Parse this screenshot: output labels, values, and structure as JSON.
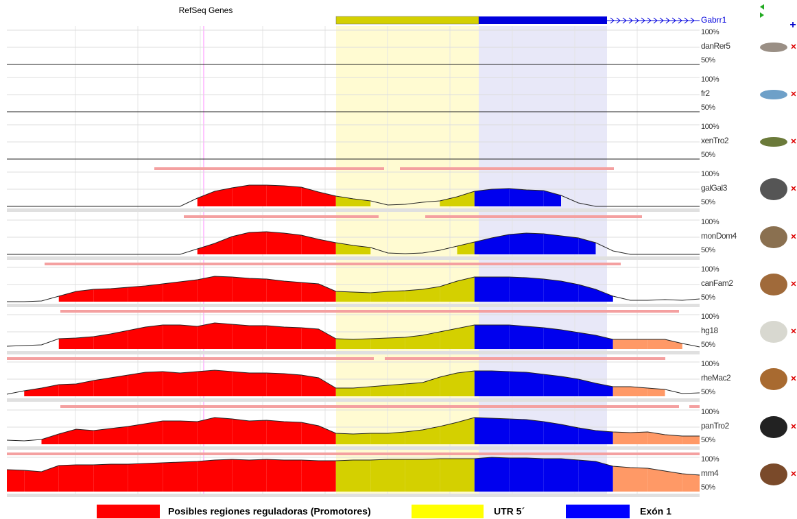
{
  "header": {
    "track_title": "RefSeq Genes",
    "gene": "Gabrr1"
  },
  "tracks": [
    {
      "name": "danRer5",
      "top_label": "100%",
      "bottom_label": "50%",
      "values": [
        50,
        50,
        50,
        50,
        50,
        50,
        50,
        50,
        50,
        50,
        50,
        50,
        50,
        50,
        50,
        50,
        50,
        50,
        50,
        50,
        50,
        50,
        50,
        50,
        50,
        50,
        50,
        50,
        50,
        50,
        50,
        50,
        50,
        50,
        50,
        50,
        50,
        50,
        50,
        50,
        50
      ]
    },
    {
      "name": "fr2",
      "top_label": "100%",
      "bottom_label": "50%",
      "values": [
        50,
        50,
        50,
        50,
        50,
        50,
        50,
        50,
        50,
        50,
        50,
        50,
        50,
        50,
        50,
        50,
        50,
        50,
        50,
        50,
        50,
        50,
        50,
        50,
        50,
        50,
        50,
        50,
        50,
        50,
        50,
        50,
        50,
        50,
        50,
        50,
        50,
        50,
        50,
        50,
        50
      ]
    },
    {
      "name": "xenTro2",
      "top_label": "100%",
      "bottom_label": "50%",
      "values": [
        50,
        50,
        50,
        50,
        50,
        50,
        50,
        50,
        50,
        50,
        50,
        50,
        50,
        50,
        50,
        50,
        50,
        50,
        50,
        50,
        50,
        50,
        50,
        50,
        50,
        50,
        50,
        50,
        50,
        50,
        50,
        50,
        50,
        50,
        50,
        50,
        50,
        50,
        50,
        50,
        50
      ]
    },
    {
      "name": "galGal3",
      "top_label": "100%",
      "bottom_label": "50%",
      "values": [
        50,
        50,
        50,
        50,
        50,
        50,
        50,
        50,
        50,
        50,
        50,
        62,
        72,
        77,
        81,
        81,
        80,
        78,
        71,
        65,
        61,
        58,
        52,
        53,
        56,
        58,
        64,
        72,
        75,
        76,
        74,
        73,
        66,
        55,
        50,
        50,
        50,
        50,
        50,
        50,
        50
      ]
    },
    {
      "name": "monDom4",
      "top_label": "100%",
      "bottom_label": "50%",
      "values": [
        50,
        50,
        50,
        50,
        50,
        50,
        50,
        50,
        50,
        50,
        50,
        58,
        66,
        76,
        82,
        83,
        81,
        78,
        72,
        67,
        63,
        60,
        52,
        51,
        52,
        56,
        62,
        68,
        74,
        79,
        81,
        80,
        77,
        74,
        67,
        55,
        50,
        50,
        50,
        50,
        50
      ]
    },
    {
      "name": "canFam2",
      "top_label": "100%",
      "bottom_label": "50%",
      "values": [
        50,
        50,
        51,
        58,
        65,
        68,
        69,
        71,
        73,
        76,
        79,
        82,
        87,
        86,
        84,
        83,
        80,
        78,
        76,
        65,
        64,
        63,
        65,
        66,
        68,
        72,
        80,
        86,
        86,
        86,
        85,
        83,
        80,
        75,
        68,
        58,
        52,
        52,
        53,
        52,
        54
      ]
    },
    {
      "name": "hg18",
      "top_label": "100%",
      "bottom_label": "50%",
      "values": [
        54,
        55,
        56,
        65,
        66,
        68,
        72,
        77,
        82,
        85,
        85,
        83,
        88,
        86,
        84,
        84,
        82,
        81,
        79,
        65,
        64,
        65,
        66,
        67,
        70,
        75,
        80,
        85,
        85,
        85,
        83,
        81,
        78,
        74,
        70,
        64,
        64,
        64,
        64,
        58,
        53
      ]
    },
    {
      "name": "rheMac2",
      "top_label": "100%",
      "bottom_label": "50%",
      "values": [
        53,
        58,
        62,
        67,
        68,
        73,
        77,
        81,
        85,
        86,
        84,
        86,
        88,
        86,
        84,
        84,
        83,
        81,
        77,
        62,
        62,
        64,
        66,
        68,
        70,
        78,
        84,
        87,
        87,
        86,
        85,
        82,
        79,
        75,
        69,
        64,
        64,
        62,
        60,
        54,
        55
      ]
    },
    {
      "name": "panTro2",
      "top_label": "100%",
      "bottom_label": "50%",
      "values": [
        56,
        55,
        57,
        65,
        72,
        70,
        73,
        76,
        80,
        84,
        84,
        83,
        89,
        87,
        84,
        85,
        83,
        82,
        77,
        66,
        65,
        66,
        66,
        68,
        71,
        76,
        82,
        89,
        88,
        87,
        86,
        83,
        79,
        74,
        70,
        68,
        67,
        68,
        64,
        62,
        62
      ]
    },
    {
      "name": "mm4",
      "top_label": "100%",
      "bottom_label": "50%",
      "values": [
        82,
        81,
        79,
        88,
        89,
        89,
        90,
        90,
        91,
        92,
        93,
        94,
        96,
        97,
        96,
        97,
        96,
        96,
        95,
        95,
        96,
        96,
        97,
        97,
        97,
        98,
        98,
        98,
        100,
        99,
        99,
        98,
        98,
        96,
        94,
        87,
        85,
        84,
        80,
        76,
        74
      ]
    }
  ],
  "legend": [
    {
      "label": "Posibles regiones reguladoras (Promotores)",
      "color": "#ff0000"
    },
    {
      "label": "UTR 5´",
      "color": "#ffff00"
    },
    {
      "label": "Exón 1",
      "color": "#0000ff"
    }
  ]
}
